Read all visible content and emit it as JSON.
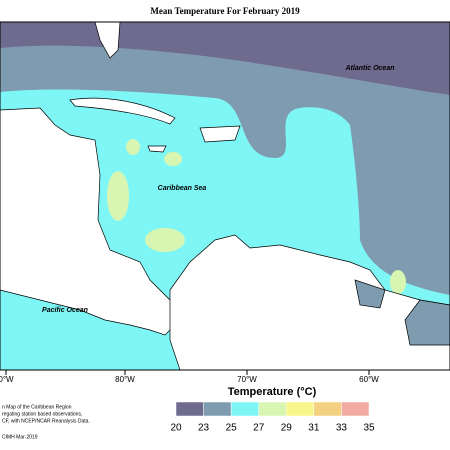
{
  "title": "Mean Temperature For February 2019",
  "labels": {
    "atlantic": "Atlantic Ocean",
    "caribbean": "Caribbean Sea",
    "pacific": "Pacific Ocean"
  },
  "longitudes": [
    "0°W",
    "80°W",
    "70°W",
    "60°W"
  ],
  "notes": [
    "n Map of the Caribbean Region",
    "regating station based observations,",
    "CF, with NCEP/NCAR Reanalysis Data.",
    "CIMH Mar-2019"
  ],
  "legend": {
    "title": "Temperature (°C)",
    "ticks": [
      20,
      23,
      25,
      27,
      29,
      31,
      33,
      35
    ],
    "colors": [
      "#6e6b8e",
      "#7f9bb0",
      "#7ff6f6",
      "#d8f5b2",
      "#f6f68a",
      "#f4d081",
      "#f2aba0"
    ]
  }
}
